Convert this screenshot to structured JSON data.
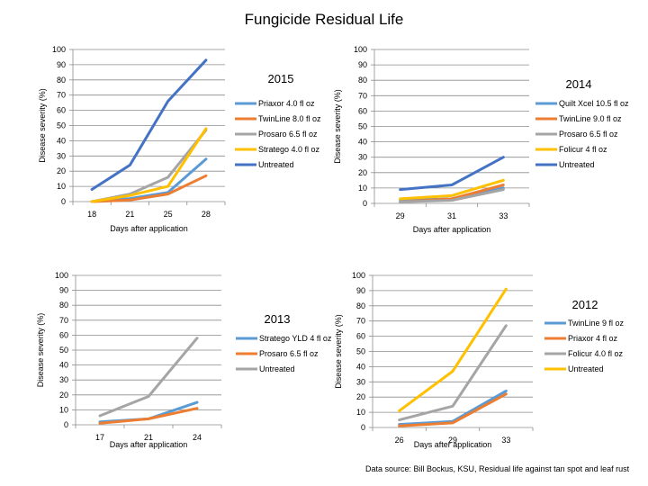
{
  "page": {
    "title": "Fungicide Residual Life",
    "source_note": "Data source: Bill  Bockus, KSU, Residual life against tan spot and leaf rust"
  },
  "chart_data": [
    {
      "type": "line",
      "title": "2015",
      "xlabel": "Days after application",
      "ylabel": "Disease severity (%)",
      "ylim": [
        0,
        100
      ],
      "yticks": [
        0,
        10,
        20,
        30,
        40,
        50,
        60,
        70,
        80,
        90,
        100
      ],
      "grid": true,
      "legend": "right",
      "categories": [
        "18",
        "21",
        "25",
        "28"
      ],
      "series": [
        {
          "name": "Priaxor 4.0 fl oz",
          "color": "#5b9bd5",
          "values": [
            0,
            2,
            6,
            28
          ]
        },
        {
          "name": "TwinLine 8.0 fl oz",
          "color": "#ed7d31",
          "values": [
            0,
            1,
            5,
            17
          ]
        },
        {
          "name": "Prosaro 6.5 fl oz",
          "color": "#a5a5a5",
          "values": [
            0,
            5,
            16,
            47
          ]
        },
        {
          "name": "Stratego 4.0 fl oz",
          "color": "#ffc000",
          "values": [
            0,
            4,
            10,
            48
          ]
        },
        {
          "name": "Untreated",
          "color": "#4472c4",
          "values": [
            8,
            24,
            66,
            93
          ]
        }
      ]
    },
    {
      "type": "line",
      "title": "2014",
      "xlabel": "Days after application",
      "ylabel": "Disease severity (%)",
      "ylim": [
        0,
        100
      ],
      "yticks": [
        0,
        10,
        20,
        30,
        40,
        50,
        60,
        70,
        80,
        90,
        100
      ],
      "grid": true,
      "legend": "right",
      "categories": [
        "29",
        "31",
        "33"
      ],
      "series": [
        {
          "name": "Quilt Xcel 10.5 fl oz",
          "color": "#5b9bd5",
          "values": [
            2,
            3,
            10
          ]
        },
        {
          "name": "TwinLine 9.0 fl oz",
          "color": "#ed7d31",
          "values": [
            1,
            3,
            12
          ]
        },
        {
          "name": "Prosaro 6.5 fl oz",
          "color": "#a5a5a5",
          "values": [
            1,
            2,
            9
          ]
        },
        {
          "name": "Folicur 4 fl oz",
          "color": "#ffc000",
          "values": [
            3,
            5,
            15
          ]
        },
        {
          "name": "Untreated",
          "color": "#4472c4",
          "values": [
            9,
            12,
            30
          ]
        }
      ]
    },
    {
      "type": "line",
      "title": "2013",
      "xlabel": "Days after application",
      "ylabel": "Disease severity (%)",
      "ylim": [
        0,
        100
      ],
      "yticks": [
        0,
        10,
        20,
        30,
        40,
        50,
        60,
        70,
        80,
        90,
        100
      ],
      "grid": true,
      "legend": "right",
      "categories": [
        "17",
        "21",
        "24"
      ],
      "series": [
        {
          "name": "Stratego YLD 4 fl oz",
          "color": "#5b9bd5",
          "values": [
            2,
            4,
            15
          ]
        },
        {
          "name": "Prosaro 6.5 fl oz",
          "color": "#ed7d31",
          "values": [
            1,
            4,
            11
          ]
        },
        {
          "name": "Untreated",
          "color": "#a5a5a5",
          "values": [
            6,
            19,
            58
          ]
        }
      ]
    },
    {
      "type": "line",
      "title": "2012",
      "xlabel": "Days after application",
      "ylabel": "Disease severity (%)",
      "ylim": [
        0,
        100
      ],
      "yticks": [
        0,
        10,
        20,
        30,
        40,
        50,
        60,
        70,
        80,
        90,
        100
      ],
      "grid": true,
      "legend": "right",
      "categories": [
        "26",
        "29",
        "33"
      ],
      "series": [
        {
          "name": "TwinLine 9 fl oz",
          "color": "#5b9bd5",
          "values": [
            2,
            4,
            24
          ]
        },
        {
          "name": "Priaxor 4 fl oz",
          "color": "#ed7d31",
          "values": [
            1,
            3,
            22
          ]
        },
        {
          "name": "Folicur 4.0 fl oz",
          "color": "#a5a5a5",
          "values": [
            5,
            14,
            67
          ]
        },
        {
          "name": "Untreated",
          "color": "#ffc000",
          "values": [
            11,
            37,
            91
          ]
        }
      ]
    }
  ]
}
